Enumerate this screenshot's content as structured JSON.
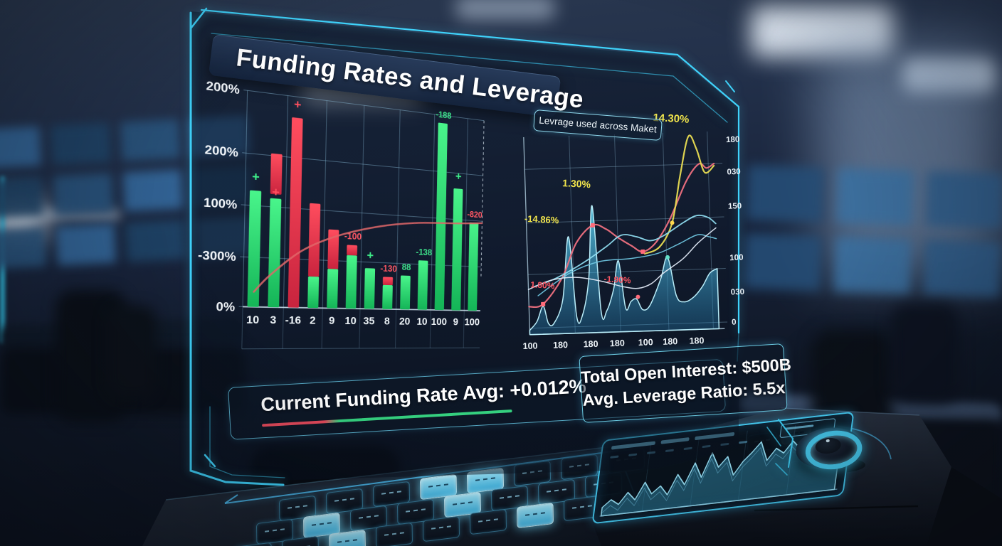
{
  "scene": {
    "title": "Funding Rates and Leverage",
    "legend_box": "Levrage used across Maket",
    "footer": {
      "funding_rate": "Current Funding Rate Avg: +0.012%",
      "open_interest": "Total Open Interest: $500B",
      "leverage_ratio": "Avg. Leverage Ratio: 5.5x"
    },
    "colors": {
      "frame_cyan": "#3fd2fa",
      "bar_green": "#2ee66e",
      "bar_red": "#f23b52",
      "annotation_yellow": "#f0e44c",
      "annotation_red": "#ff5663",
      "area_cyan": "#57c8e8"
    }
  },
  "chart_data": [
    {
      "id": "funding_bars",
      "type": "bar",
      "title": "Funding Rates and Leverage",
      "ylabel": "%",
      "ylim_pct_of_grid": [
        0,
        100
      ],
      "y_axis": [
        {
          "v": 100,
          "label": "200%"
        },
        {
          "v": 71,
          "label": "200%"
        },
        {
          "v": 47,
          "label": "100%"
        },
        {
          "v": 23,
          "label": "-300%"
        },
        {
          "v": 0,
          "label": "0%"
        }
      ],
      "x_categories": [
        "10",
        "3",
        "-16",
        "2",
        "9",
        "10",
        "35",
        "8",
        "20",
        "10",
        "100",
        "9",
        "100"
      ],
      "bars": [
        {
          "x": "10",
          "segs": [
            [
              "g",
              0,
              54
            ]
          ],
          "mark": [
            "+",
            "g"
          ]
        },
        {
          "x": "3",
          "segs": [
            [
              "g",
              0,
              51
            ],
            [
              "r",
              53,
              72
            ]
          ],
          "mark": [
            "+",
            "r",
            52
          ]
        },
        {
          "x": "-16",
          "segs": [
            [
              "r",
              0,
              90
            ]
          ],
          "mark": [
            "+",
            "r"
          ]
        },
        {
          "x": "2",
          "segs": [
            [
              "g",
              0,
              15
            ],
            [
              "r",
              15,
              50
            ]
          ]
        },
        {
          "x": "9",
          "segs": [
            [
              "g",
              0,
              19
            ],
            [
              "r",
              19,
              38
            ]
          ]
        },
        {
          "x": "10",
          "segs": [
            [
              "g",
              0,
              26
            ],
            [
              "r",
              26,
              31
            ]
          ],
          "note": [
            "-100",
            "r"
          ]
        },
        {
          "x": "35",
          "segs": [
            [
              "g",
              0,
              20
            ]
          ],
          "mark": [
            "+",
            "g"
          ]
        },
        {
          "x": "8",
          "segs": [
            [
              "g",
              0,
              12
            ],
            [
              "r",
              12,
              16
            ]
          ],
          "note": [
            "-130",
            "r"
          ]
        },
        {
          "x": "20",
          "segs": [
            [
              "g",
              0,
              17
            ]
          ],
          "note": [
            "88",
            "g"
          ]
        },
        {
          "x": "10",
          "segs": [
            [
              "g",
              0,
              25
            ]
          ],
          "note": [
            "-138",
            "g"
          ]
        },
        {
          "x": "100",
          "segs": [
            [
              "g",
              0,
              96
            ]
          ],
          "note": [
            "-188",
            "g"
          ]
        },
        {
          "x": "9",
          "segs": [
            [
              "g",
              0,
              63
            ]
          ],
          "mark": [
            "+",
            "g"
          ]
        },
        {
          "x": "100",
          "segs": [
            [
              "g",
              0,
              46
            ]
          ],
          "note": [
            "-820",
            "r"
          ]
        }
      ],
      "trend_line": [
        [
          4,
          7
        ],
        [
          10,
          15
        ],
        [
          22,
          27
        ],
        [
          36,
          35
        ],
        [
          54,
          41
        ],
        [
          71,
          44
        ],
        [
          88,
          45
        ],
        [
          100,
          46
        ]
      ]
    },
    {
      "id": "leverage_lines",
      "type": "area",
      "title": "Levrage used across Maket",
      "x_labels": [
        "100",
        "180",
        "180",
        "180",
        "100",
        "180",
        "180"
      ],
      "x_label_pos": [
        0,
        16,
        32,
        46,
        61,
        74,
        88
      ],
      "y_labels": [
        {
          "v": 88,
          "label": "180"
        },
        {
          "v": 73,
          "label": "030"
        },
        {
          "v": 57,
          "label": "150"
        },
        {
          "v": 33,
          "label": "100"
        },
        {
          "v": 17,
          "label": "030"
        },
        {
          "v": 3,
          "label": "0"
        }
      ],
      "h_grid": [
        77,
        52,
        28,
        3
      ],
      "v_grid": [
        0,
        24,
        48,
        73.5,
        97
      ],
      "area": [
        [
          0,
          2
        ],
        [
          4,
          6
        ],
        [
          7.5,
          13
        ],
        [
          10,
          5
        ],
        [
          13,
          5
        ],
        [
          18,
          16
        ],
        [
          22,
          45
        ],
        [
          25,
          8
        ],
        [
          28,
          8
        ],
        [
          32,
          25
        ],
        [
          35,
          59
        ],
        [
          38,
          10
        ],
        [
          41,
          10
        ],
        [
          45,
          20
        ],
        [
          48,
          33
        ],
        [
          51,
          11
        ],
        [
          54,
          14
        ],
        [
          57,
          15
        ],
        [
          60,
          10
        ],
        [
          64,
          12
        ],
        [
          70,
          24
        ],
        [
          74,
          34
        ],
        [
          78,
          16
        ],
        [
          82,
          13
        ],
        [
          87,
          15
        ],
        [
          92,
          20
        ],
        [
          96,
          26
        ],
        [
          100,
          28
        ]
      ],
      "lines": [
        {
          "name": "red-markers-line",
          "color": "#ef7080",
          "w": 2.2,
          "pts": [
            [
              0,
              13
            ],
            [
              7.5,
              14
            ],
            [
              18,
              26
            ],
            [
              26,
              42
            ],
            [
              35,
              50
            ],
            [
              42,
              48
            ],
            [
              48,
              44
            ],
            [
              55,
              40
            ],
            [
              61,
              37
            ],
            [
              68,
              41
            ],
            [
              76,
              52
            ],
            [
              85,
              69
            ],
            [
              92,
              77
            ],
            [
              96,
              75
            ],
            [
              100,
              77
            ]
          ]
        },
        {
          "name": "yellow-spike-line",
          "color": "#e8dc52",
          "w": 2.2,
          "pts": [
            [
              62,
              36
            ],
            [
              70,
              39
            ],
            [
              77,
              50
            ],
            [
              82,
              72
            ],
            [
              87,
              90
            ],
            [
              91,
              84
            ],
            [
              95,
              73
            ],
            [
              100,
              76
            ]
          ]
        },
        {
          "name": "cyan-upper-line",
          "color": "#8fdcef",
          "w": 1.8,
          "pts": [
            [
              2,
              22
            ],
            [
              15,
              26
            ],
            [
              30,
              33
            ],
            [
              42,
              40
            ],
            [
              50,
              45
            ],
            [
              58,
              44
            ],
            [
              65,
              42
            ],
            [
              72,
              44
            ],
            [
              83,
              50
            ],
            [
              90,
              53
            ],
            [
              96,
              52
            ],
            [
              100,
              49
            ]
          ]
        },
        {
          "name": "cyan-lower-line",
          "color": "#6fc6e0",
          "w": 1.5,
          "pts": [
            [
              5,
              18
            ],
            [
              22,
              28
            ],
            [
              38,
              33
            ],
            [
              55,
              34
            ],
            [
              69,
              36
            ],
            [
              80,
              40
            ],
            [
              90,
              44
            ],
            [
              96,
              43
            ],
            [
              100,
              42
            ]
          ]
        },
        {
          "name": "white-line",
          "color": "#dfe8f4",
          "w": 1.5,
          "pts": [
            [
              0,
              21
            ],
            [
              12,
              25
            ],
            [
              25,
              26
            ],
            [
              38,
              24
            ],
            [
              50,
              21
            ],
            [
              58,
              20
            ],
            [
              65,
              22
            ],
            [
              72,
              27
            ],
            [
              82,
              33
            ],
            [
              90,
              40
            ],
            [
              97,
              45
            ],
            [
              100,
              47
            ]
          ]
        }
      ],
      "markers": [
        {
          "c": "#ff6b7a",
          "shape": "sq",
          "pts": [
            [
              7.5,
              14
            ],
            [
              35,
              50
            ],
            [
              61,
              37
            ]
          ]
        },
        {
          "c": "#ffd84e",
          "shape": "c",
          "pts": [
            [
              77,
              50
            ]
          ]
        },
        {
          "c": "#62e0c8",
          "shape": "c",
          "pts": [
            [
              74,
              34
            ]
          ]
        },
        {
          "c": "#ff6b7a",
          "shape": "c",
          "pts": [
            [
              57.7,
              16
            ]
          ]
        }
      ],
      "annotations": [
        {
          "t": "14.30%",
          "c": "#f0e44c",
          "x": 78,
          "y": 97,
          "fs": 15
        },
        {
          "t": "1.30%",
          "c": "#f0e44c",
          "x": 27,
          "y": 68,
          "fs": 14
        },
        {
          "t": "-14.86%",
          "c": "#f0e44c",
          "x": 8,
          "y": 52,
          "fs": 13
        },
        {
          "t": "1.80%",
          "c": "#ff5663",
          "x": 1,
          "y": 22,
          "fs": 12
        },
        {
          "t": "-1.90%",
          "c": "#ff5663",
          "x": 47,
          "y": 23,
          "fs": 12
        }
      ]
    },
    {
      "id": "console_sparkline",
      "type": "line",
      "values": [
        8,
        18,
        10,
        26,
        14,
        38,
        20,
        30,
        16,
        44,
        28,
        58,
        36,
        70,
        48,
        62,
        34,
        52,
        64,
        78,
        50,
        66,
        58,
        74,
        62,
        82,
        68,
        60,
        72,
        64
      ]
    }
  ]
}
